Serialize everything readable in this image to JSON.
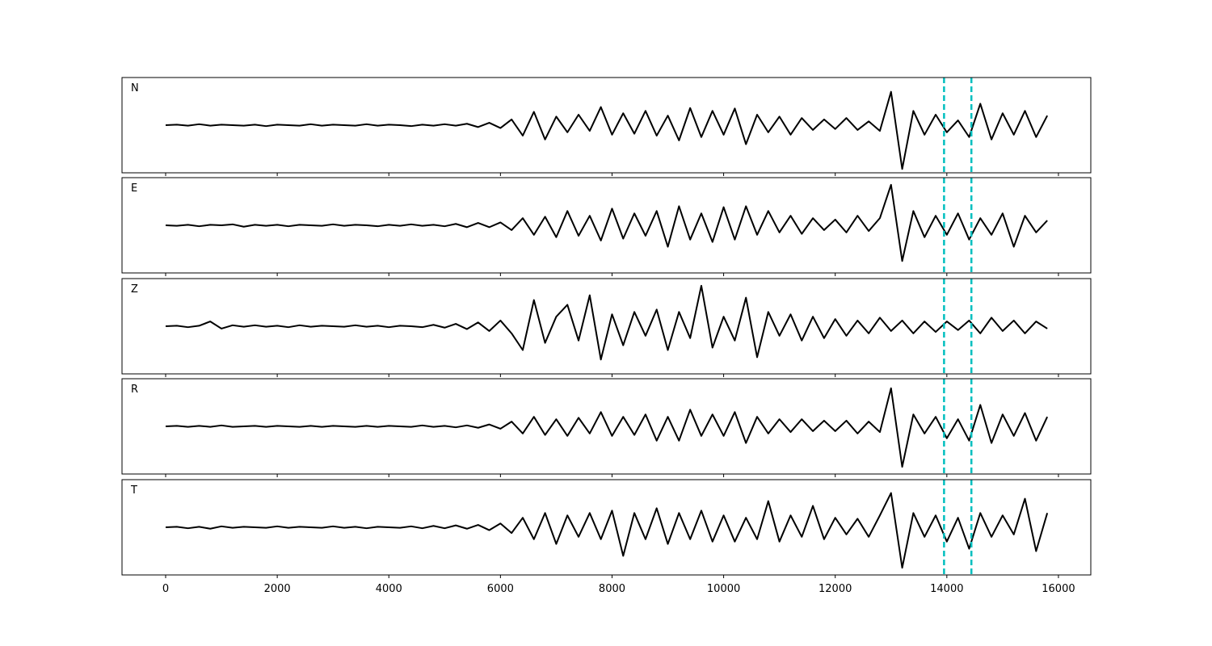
{
  "chart_data": {
    "type": "line",
    "x": [
      0,
      200,
      400,
      600,
      800,
      1000,
      1200,
      1400,
      1600,
      1800,
      2000,
      2200,
      2400,
      2600,
      2800,
      3000,
      3200,
      3400,
      3600,
      3800,
      4000,
      4200,
      4400,
      4600,
      4800,
      5000,
      5200,
      5400,
      5600,
      5800,
      6000,
      6200,
      6400,
      6600,
      6800,
      7000,
      7200,
      7400,
      7600,
      7800,
      8000,
      8200,
      8400,
      8600,
      8800,
      9000,
      9200,
      9400,
      9600,
      9800,
      10000,
      10200,
      10400,
      10600,
      10800,
      11000,
      11200,
      11400,
      11600,
      11800,
      12000,
      12200,
      12400,
      12600,
      12800,
      13000,
      13200,
      13400,
      13600,
      13800,
      14000,
      14200,
      14400,
      14600,
      14800,
      15000,
      15200,
      15400,
      15600,
      15800
    ],
    "series": [
      {
        "name": "N",
        "color": "#000000",
        "values": [
          0,
          0.01,
          -0.01,
          0.02,
          -0.01,
          0.01,
          0,
          -0.01,
          0.01,
          -0.02,
          0.01,
          0,
          -0.01,
          0.02,
          -0.01,
          0.01,
          0,
          -0.01,
          0.02,
          -0.01,
          0.01,
          0,
          -0.02,
          0.01,
          -0.01,
          0.02,
          -0.01,
          0.03,
          -0.04,
          0.05,
          -0.06,
          0.12,
          -0.22,
          0.28,
          -0.3,
          0.18,
          -0.15,
          0.22,
          -0.12,
          0.38,
          -0.2,
          0.25,
          -0.18,
          0.3,
          -0.22,
          0.2,
          -0.32,
          0.36,
          -0.25,
          0.3,
          -0.2,
          0.35,
          -0.4,
          0.22,
          -0.15,
          0.18,
          -0.2,
          0.15,
          -0.1,
          0.12,
          -0.08,
          0.15,
          -0.1,
          0.08,
          -0.12,
          0.7,
          -0.92,
          0.3,
          -0.2,
          0.22,
          -0.15,
          0.1,
          -0.25,
          0.45,
          -0.3,
          0.25,
          -0.2,
          0.3,
          -0.25,
          0.2
        ]
      },
      {
        "name": "E",
        "color": "#000000",
        "values": [
          0,
          -0.01,
          0.01,
          -0.02,
          0.01,
          0,
          0.02,
          -0.03,
          0.01,
          -0.01,
          0.01,
          -0.02,
          0.01,
          0,
          -0.01,
          0.02,
          -0.01,
          0.01,
          0,
          -0.02,
          0.01,
          -0.01,
          0.02,
          -0.01,
          0.01,
          -0.02,
          0.03,
          -0.04,
          0.05,
          -0.04,
          0.06,
          -0.1,
          0.15,
          -0.2,
          0.18,
          -0.25,
          0.3,
          -0.22,
          0.2,
          -0.32,
          0.35,
          -0.28,
          0.25,
          -0.22,
          0.3,
          -0.45,
          0.4,
          -0.3,
          0.25,
          -0.35,
          0.38,
          -0.3,
          0.4,
          -0.2,
          0.3,
          -0.15,
          0.2,
          -0.18,
          0.15,
          -0.1,
          0.12,
          -0.15,
          0.2,
          -0.12,
          0.15,
          0.85,
          -0.75,
          0.3,
          -0.25,
          0.2,
          -0.2,
          0.25,
          -0.3,
          0.15,
          -0.2,
          0.25,
          -0.45,
          0.2,
          -0.15,
          0.1
        ]
      },
      {
        "name": "Z",
        "color": "#000000",
        "values": [
          0,
          0.01,
          -0.02,
          0.01,
          0.1,
          -0.05,
          0.02,
          -0.01,
          0.02,
          -0.01,
          0.01,
          -0.02,
          0.02,
          -0.01,
          0.01,
          0,
          -0.01,
          0.02,
          -0.01,
          0.01,
          -0.02,
          0.01,
          0,
          -0.02,
          0.03,
          -0.03,
          0.05,
          -0.06,
          0.08,
          -0.1,
          0.12,
          -0.15,
          -0.5,
          0.55,
          -0.35,
          0.2,
          0.45,
          -0.3,
          0.65,
          -0.7,
          0.25,
          -0.4,
          0.3,
          -0.2,
          0.35,
          -0.5,
          0.3,
          -0.25,
          0.85,
          -0.45,
          0.2,
          -0.3,
          0.6,
          -0.65,
          0.3,
          -0.2,
          0.25,
          -0.3,
          0.2,
          -0.25,
          0.15,
          -0.2,
          0.12,
          -0.15,
          0.18,
          -0.1,
          0.12,
          -0.15,
          0.1,
          -0.12,
          0.1,
          -0.08,
          0.12,
          -0.15,
          0.18,
          -0.1,
          0.12,
          -0.15,
          0.1,
          -0.05
        ]
      },
      {
        "name": "R",
        "color": "#000000",
        "values": [
          0,
          0.01,
          -0.01,
          0.01,
          -0.01,
          0.02,
          -0.01,
          0,
          0.01,
          -0.01,
          0.01,
          0,
          -0.01,
          0.01,
          -0.01,
          0.01,
          0,
          -0.01,
          0.01,
          -0.01,
          0.01,
          0,
          -0.01,
          0.02,
          -0.01,
          0.01,
          -0.02,
          0.02,
          -0.03,
          0.04,
          -0.05,
          0.1,
          -0.15,
          0.2,
          -0.18,
          0.15,
          -0.2,
          0.18,
          -0.15,
          0.3,
          -0.2,
          0.2,
          -0.18,
          0.25,
          -0.3,
          0.2,
          -0.3,
          0.35,
          -0.2,
          0.25,
          -0.2,
          0.3,
          -0.35,
          0.2,
          -0.15,
          0.15,
          -0.12,
          0.15,
          -0.1,
          0.12,
          -0.1,
          0.12,
          -0.15,
          0.1,
          -0.12,
          0.8,
          -0.85,
          0.25,
          -0.15,
          0.2,
          -0.25,
          0.15,
          -0.3,
          0.45,
          -0.35,
          0.25,
          -0.2,
          0.28,
          -0.3,
          0.2
        ]
      },
      {
        "name": "T",
        "color": "#000000",
        "values": [
          0,
          0.01,
          -0.02,
          0.01,
          -0.03,
          0.02,
          -0.01,
          0.01,
          0,
          -0.01,
          0.02,
          -0.01,
          0.01,
          0,
          -0.01,
          0.02,
          -0.01,
          0.01,
          -0.02,
          0.01,
          0,
          -0.01,
          0.02,
          -0.02,
          0.03,
          -0.02,
          0.04,
          -0.03,
          0.05,
          -0.06,
          0.08,
          -0.12,
          0.2,
          -0.25,
          0.3,
          -0.35,
          0.25,
          -0.2,
          0.3,
          -0.25,
          0.35,
          -0.6,
          0.3,
          -0.25,
          0.4,
          -0.35,
          0.3,
          -0.25,
          0.35,
          -0.3,
          0.25,
          -0.3,
          0.2,
          -0.25,
          0.55,
          -0.3,
          0.25,
          -0.2,
          0.45,
          -0.25,
          0.2,
          -0.15,
          0.18,
          -0.2,
          0.25,
          0.72,
          -0.85,
          0.3,
          -0.2,
          0.25,
          -0.3,
          0.2,
          -0.45,
          0.3,
          -0.2,
          0.25,
          -0.15,
          0.6,
          -0.5,
          0.3
        ]
      }
    ],
    "xlim": [
      -782,
      16580
    ],
    "xticks": [
      0,
      2000,
      4000,
      6000,
      8000,
      10000,
      12000,
      14000,
      16000
    ],
    "ylim": [
      -1,
      1
    ],
    "vlines": [
      13950,
      14440
    ],
    "vline_color": "#00bfbf"
  }
}
